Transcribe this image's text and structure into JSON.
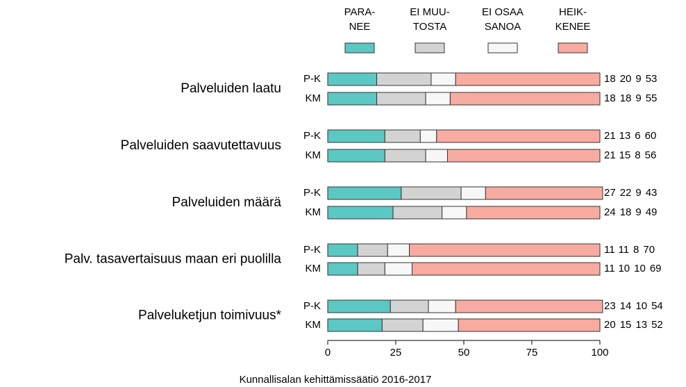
{
  "chart_data": {
    "type": "stacked-bar-horizontal",
    "groups": [
      "Palveluiden laatu",
      "Palveluiden saavutettavuus",
      "Palveluiden määrä",
      "Palv. tasavertaisuus maan eri puolilla",
      "Palveluketjun toimivuus*"
    ],
    "categories": [
      "P-K",
      "KM",
      "P-K",
      "KM",
      "P-K",
      "KM",
      "P-K",
      "KM",
      "P-K",
      "KM"
    ],
    "series": [
      {
        "name": "PARA-\nNEE",
        "color": "#5bc8c4",
        "values": [
          18,
          18,
          21,
          21,
          27,
          24,
          11,
          11,
          23,
          20
        ]
      },
      {
        "name": "EI MUU-\nTOSTA",
        "color": "#d3d3d3",
        "values": [
          20,
          18,
          13,
          15,
          22,
          18,
          11,
          10,
          14,
          15
        ]
      },
      {
        "name": "EI OSAA\nSANOA",
        "color": "#f7f7f7",
        "values": [
          9,
          9,
          6,
          8,
          9,
          9,
          8,
          10,
          10,
          13
        ]
      },
      {
        "name": "HEIK-\nKENEE",
        "color": "#f8aba1",
        "values": [
          53,
          55,
          60,
          56,
          43,
          49,
          70,
          69,
          54,
          52
        ]
      }
    ],
    "xlim": [
      0,
      100
    ],
    "xticks": [
      0,
      25,
      50,
      75,
      100
    ],
    "source": "Kunnallisalan kehittämissäätiö 2016-2017"
  }
}
